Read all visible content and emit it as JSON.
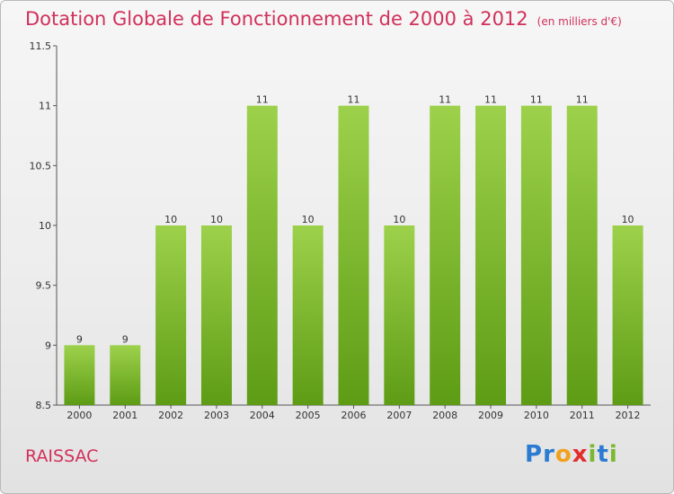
{
  "header": {
    "title": "Dotation Globale de Fonctionnement de 2000 à 2012",
    "subtitle": "(en milliers d'€)"
  },
  "commune": "RAISSAC",
  "brand": {
    "name": "Proxiti",
    "letters": [
      "P",
      "r",
      "o",
      "x",
      "i",
      "t",
      "i"
    ],
    "colors": [
      "#2a7bd1",
      "#2a7bd1",
      "#f2a11d",
      "#e32d2d",
      "#7ab92f",
      "#2a7bd1",
      "#7ab92f"
    ]
  },
  "colors": {
    "title": "#d1305a",
    "bar": "#8cc63f",
    "bar_dark": "#5e9c15"
  },
  "chart_data": {
    "type": "bar",
    "title": "Dotation Globale de Fonctionnement de 2000 à 2012",
    "subtitle": "(en milliers d'€)",
    "categories": [
      "2000",
      "2001",
      "2002",
      "2003",
      "2004",
      "2005",
      "2006",
      "2007",
      "2008",
      "2009",
      "2010",
      "2011",
      "2012"
    ],
    "values": [
      9,
      9,
      10,
      10,
      11,
      10,
      11,
      10,
      11,
      11,
      11,
      11,
      10
    ],
    "data_labels": [
      "9",
      "9",
      "10",
      "10",
      "11",
      "10",
      "11",
      "10",
      "11",
      "11",
      "11",
      "11",
      "10"
    ],
    "ylim": [
      8.5,
      11.5
    ],
    "yticks": [
      "8.5",
      "9",
      "9.5",
      "10",
      "10.5",
      "11",
      "11.5"
    ],
    "grid": false,
    "xlabel": "",
    "ylabel": ""
  }
}
